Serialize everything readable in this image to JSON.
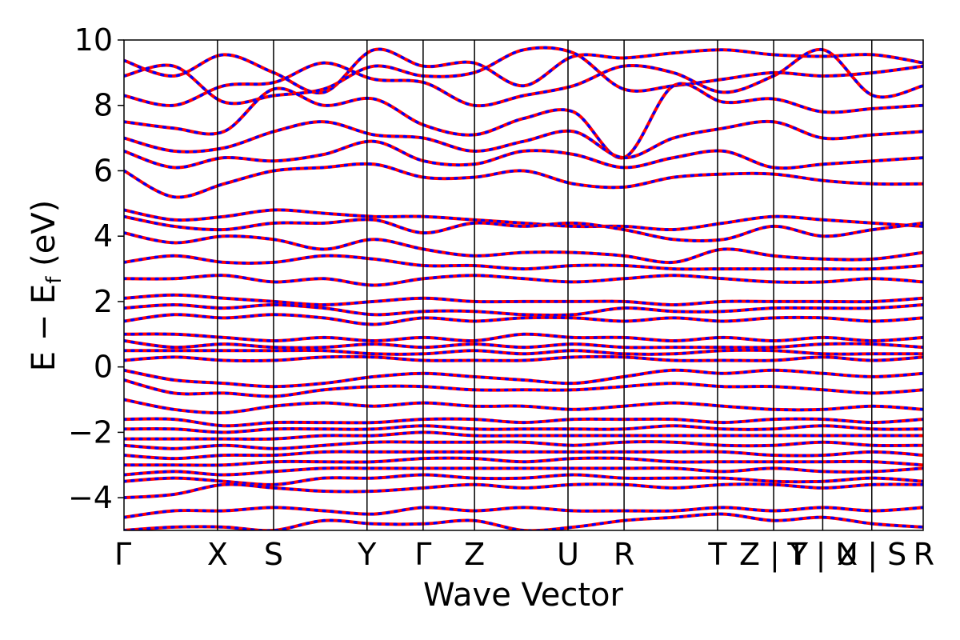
{
  "chart_data": {
    "type": "line",
    "xlabel": "Wave Vector",
    "ylabel": "E − E",
    "ylabel_sub": "f",
    "ylabel_unit": " (eV)",
    "ylim": [
      -5,
      10
    ],
    "yticks": [
      -4,
      -2,
      0,
      2,
      4,
      6,
      8,
      10
    ],
    "ytick_labels": [
      "−4",
      "−2",
      "0",
      "2",
      "4",
      "6",
      "8",
      "10"
    ],
    "xlim": [
      0,
      17.1
    ],
    "kpath_ticks": [
      {
        "x": 0.0,
        "label": "Γ"
      },
      {
        "x": 2.0,
        "label": "X"
      },
      {
        "x": 3.2,
        "label": "S"
      },
      {
        "x": 5.2,
        "label": "Y"
      },
      {
        "x": 6.4,
        "label": "Γ"
      },
      {
        "x": 7.5,
        "label": "Z"
      },
      {
        "x": 9.5,
        "label": "U"
      },
      {
        "x": 10.7,
        "label": "R"
      },
      {
        "x": 12.7,
        "label": "T"
      },
      {
        "x": 13.9,
        "label": "Z | Y"
      },
      {
        "x": 14.95,
        "label": "T | U"
      },
      {
        "x": 16.0,
        "label": "X | S"
      },
      {
        "x": 17.1,
        "label": "R"
      }
    ],
    "series_style": [
      {
        "color": "#ff0000",
        "style": "solid"
      },
      {
        "color": "#0000ff",
        "style": "dotted"
      }
    ],
    "grid": false,
    "bands": [
      [
        9.37,
        8.9,
        9.55,
        9.0,
        8.4,
        9.7,
        9.2,
        9.3,
        8.6,
        9.5,
        9.45,
        9.6,
        9.7,
        9.55,
        9.5,
        9.55,
        9.3
      ],
      [
        8.9,
        9.2,
        8.1,
        8.3,
        8.5,
        9.2,
        8.9,
        9.0,
        9.7,
        9.6,
        8.5,
        8.6,
        8.8,
        9.0,
        8.9,
        9.0,
        9.2
      ],
      [
        8.3,
        8.0,
        8.6,
        8.7,
        9.3,
        8.8,
        8.7,
        8.0,
        8.3,
        8.6,
        9.2,
        9.0,
        8.4,
        8.9,
        9.7,
        8.3,
        8.6
      ],
      [
        7.5,
        7.3,
        7.2,
        8.5,
        8.0,
        8.2,
        7.4,
        7.1,
        7.6,
        7.8,
        6.4,
        8.6,
        8.1,
        8.2,
        7.8,
        7.9,
        8.0
      ],
      [
        7.0,
        6.6,
        6.7,
        7.2,
        7.5,
        7.1,
        7.0,
        6.6,
        6.9,
        7.2,
        6.4,
        7.0,
        7.3,
        7.5,
        7.0,
        7.1,
        7.2
      ],
      [
        6.6,
        6.1,
        6.4,
        6.3,
        6.5,
        6.9,
        6.3,
        6.2,
        6.6,
        6.5,
        6.1,
        6.4,
        6.6,
        6.1,
        6.2,
        6.3,
        6.4
      ],
      [
        6.0,
        5.2,
        5.6,
        6.0,
        6.1,
        6.2,
        5.8,
        5.8,
        6.0,
        5.6,
        5.5,
        5.8,
        5.9,
        5.9,
        5.7,
        5.6,
        5.6
      ],
      [
        4.8,
        4.5,
        4.6,
        4.8,
        4.7,
        4.6,
        4.6,
        4.5,
        4.4,
        4.3,
        4.3,
        4.2,
        4.4,
        4.6,
        4.5,
        4.4,
        4.3
      ],
      [
        4.6,
        4.3,
        4.2,
        4.4,
        4.4,
        4.5,
        4.1,
        4.4,
        4.3,
        4.4,
        4.2,
        3.9,
        3.9,
        4.3,
        4.0,
        4.2,
        4.4
      ],
      [
        4.1,
        3.8,
        4.0,
        3.9,
        3.6,
        3.9,
        3.6,
        3.4,
        3.5,
        3.5,
        3.4,
        3.2,
        3.6,
        3.4,
        3.3,
        3.3,
        3.5
      ],
      [
        3.2,
        3.4,
        3.2,
        3.2,
        3.4,
        3.3,
        3.1,
        3.1,
        3.0,
        3.1,
        3.1,
        3.0,
        3.0,
        3.0,
        3.0,
        3.0,
        3.1
      ],
      [
        2.7,
        2.7,
        2.8,
        2.6,
        2.7,
        2.5,
        2.7,
        2.8,
        2.7,
        2.6,
        2.7,
        2.8,
        2.7,
        2.6,
        2.6,
        2.7,
        2.6
      ],
      [
        2.1,
        2.2,
        2.1,
        2.0,
        1.9,
        2.0,
        2.1,
        2.0,
        2.0,
        2.0,
        2.0,
        1.9,
        2.0,
        2.0,
        2.0,
        2.0,
        2.1
      ],
      [
        1.8,
        1.9,
        1.8,
        1.9,
        1.8,
        1.6,
        1.7,
        1.7,
        1.6,
        1.6,
        1.8,
        1.7,
        1.7,
        1.8,
        1.8,
        1.8,
        1.9
      ],
      [
        1.4,
        1.6,
        1.5,
        1.6,
        1.5,
        1.3,
        1.5,
        1.4,
        1.5,
        1.5,
        1.4,
        1.5,
        1.4,
        1.5,
        1.5,
        1.4,
        1.5
      ],
      [
        1.0,
        1.0,
        0.9,
        0.8,
        0.9,
        0.8,
        0.9,
        0.8,
        1.0,
        0.9,
        0.9,
        0.8,
        0.9,
        0.8,
        0.9,
        0.8,
        0.9
      ],
      [
        0.8,
        0.6,
        0.7,
        0.6,
        0.6,
        0.7,
        0.6,
        0.7,
        0.6,
        0.7,
        0.6,
        0.6,
        0.6,
        0.6,
        0.7,
        0.7,
        0.6
      ],
      [
        0.5,
        0.5,
        0.5,
        0.5,
        0.5,
        0.4,
        0.4,
        0.5,
        0.4,
        0.5,
        0.4,
        0.4,
        0.5,
        0.5,
        0.4,
        0.4,
        0.4
      ],
      [
        0.2,
        0.3,
        0.2,
        0.2,
        0.3,
        0.3,
        0.2,
        0.2,
        0.2,
        0.3,
        0.3,
        0.2,
        0.2,
        0.2,
        0.3,
        0.2,
        0.3
      ],
      [
        -0.1,
        -0.4,
        -0.5,
        -0.6,
        -0.5,
        -0.3,
        -0.2,
        -0.3,
        -0.4,
        -0.5,
        -0.3,
        -0.1,
        -0.2,
        -0.1,
        -0.2,
        -0.3,
        -0.2
      ],
      [
        -0.4,
        -0.8,
        -0.8,
        -0.9,
        -0.7,
        -0.6,
        -0.6,
        -0.7,
        -0.7,
        -0.7,
        -0.6,
        -0.5,
        -0.6,
        -0.6,
        -0.7,
        -0.8,
        -0.7
      ],
      [
        -1.0,
        -1.3,
        -1.4,
        -1.2,
        -1.1,
        -1.2,
        -1.1,
        -1.2,
        -1.2,
        -1.3,
        -1.2,
        -1.1,
        -1.2,
        -1.3,
        -1.3,
        -1.2,
        -1.3
      ],
      [
        -1.6,
        -1.6,
        -1.8,
        -1.7,
        -1.7,
        -1.7,
        -1.6,
        -1.6,
        -1.7,
        -1.6,
        -1.6,
        -1.6,
        -1.7,
        -1.6,
        -1.6,
        -1.7,
        -1.6
      ],
      [
        -1.9,
        -1.9,
        -2.0,
        -1.9,
        -1.9,
        -1.9,
        -1.8,
        -1.9,
        -1.9,
        -1.9,
        -1.9,
        -1.8,
        -1.9,
        -1.9,
        -1.8,
        -1.9,
        -1.9
      ],
      [
        -2.2,
        -2.2,
        -2.2,
        -2.2,
        -2.1,
        -2.1,
        -2.0,
        -2.1,
        -2.1,
        -2.1,
        -2.1,
        -2.1,
        -2.1,
        -2.1,
        -2.1,
        -2.1,
        -2.1
      ],
      [
        -2.4,
        -2.5,
        -2.4,
        -2.5,
        -2.4,
        -2.3,
        -2.3,
        -2.3,
        -2.3,
        -2.4,
        -2.3,
        -2.3,
        -2.4,
        -2.4,
        -2.3,
        -2.4,
        -2.4
      ],
      [
        -2.7,
        -2.8,
        -2.7,
        -2.7,
        -2.6,
        -2.6,
        -2.6,
        -2.6,
        -2.6,
        -2.6,
        -2.6,
        -2.6,
        -2.6,
        -2.7,
        -2.7,
        -2.6,
        -2.7
      ],
      [
        -3.0,
        -3.0,
        -3.0,
        -2.9,
        -2.9,
        -2.9,
        -2.8,
        -2.8,
        -2.9,
        -2.8,
        -2.8,
        -2.9,
        -2.9,
        -2.9,
        -2.9,
        -2.9,
        -3.0
      ],
      [
        -3.3,
        -3.2,
        -3.3,
        -3.2,
        -3.1,
        -3.1,
        -3.1,
        -3.1,
        -3.1,
        -3.1,
        -3.1,
        -3.1,
        -3.2,
        -3.1,
        -3.2,
        -3.2,
        -3.1
      ],
      [
        -3.5,
        -3.4,
        -3.5,
        -3.6,
        -3.4,
        -3.4,
        -3.3,
        -3.4,
        -3.4,
        -3.3,
        -3.4,
        -3.4,
        -3.4,
        -3.5,
        -3.5,
        -3.4,
        -3.5
      ],
      [
        -4.0,
        -3.9,
        -3.6,
        -3.7,
        -3.8,
        -3.8,
        -3.7,
        -3.6,
        -3.7,
        -3.6,
        -3.6,
        -3.7,
        -3.6,
        -3.6,
        -3.7,
        -3.6,
        -3.6
      ],
      [
        -4.6,
        -4.4,
        -4.4,
        -4.3,
        -4.4,
        -4.5,
        -4.3,
        -4.4,
        -4.3,
        -4.4,
        -4.4,
        -4.4,
        -4.3,
        -4.4,
        -4.3,
        -4.4,
        -4.3
      ],
      [
        -5.0,
        -4.9,
        -4.9,
        -5.0,
        -4.7,
        -4.8,
        -4.8,
        -4.7,
        -5.0,
        -4.9,
        -4.7,
        -4.6,
        -4.5,
        -4.7,
        -4.6,
        -4.8,
        -4.9
      ]
    ]
  }
}
